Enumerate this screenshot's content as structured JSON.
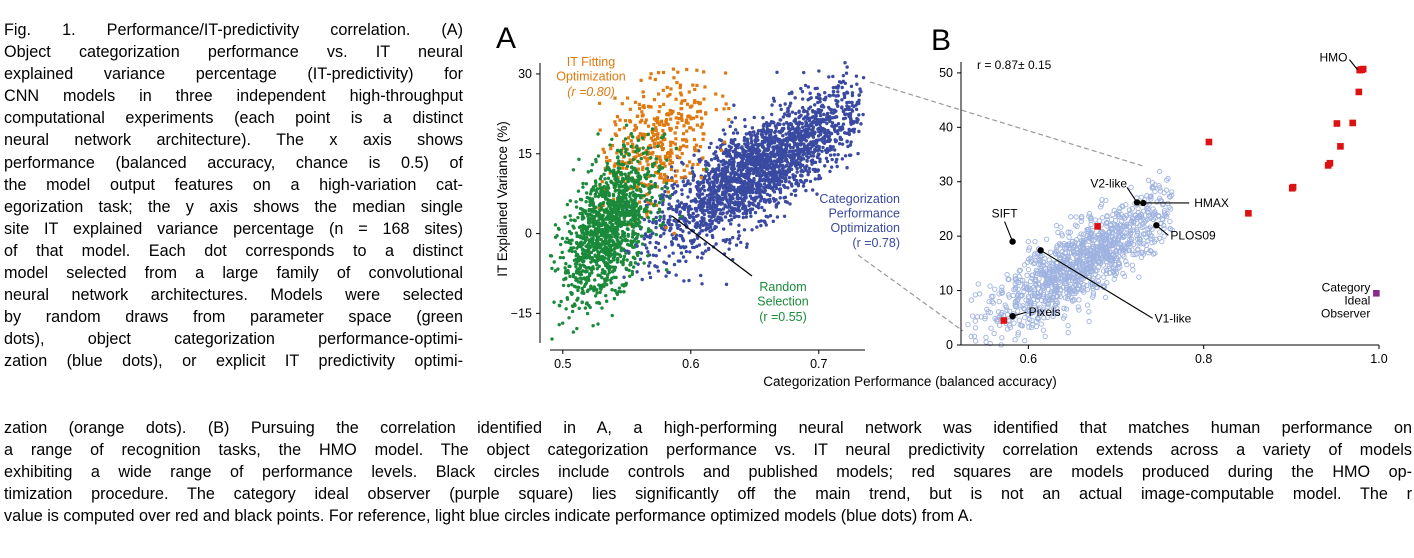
{
  "caption": {
    "top_lines": [
      "Fig. 1.   Performance/IT-predictivity correlation. (A)",
      "Object categorization performance vs. IT neural",
      "explained variance percentage (IT-predictivity) for",
      "CNN models in three independent high-throughput",
      "computational experiments (each point is a distinct",
      "neural network architecture). The x axis shows",
      "performance (balanced accuracy, chance is 0.5) of",
      "the model output features on a high-variation cat-",
      "egorization task; the y axis shows the median single",
      "site IT explained variance percentage (n = 168 sites)",
      "of that model. Each dot corresponds to a distinct",
      "model selected from a large family of convolutional",
      "neural network architectures. Models were selected",
      "by random draws from parameter space (green",
      "dots), object categorization performance-optimi-",
      "zation (blue dots), or explicit IT predictivity optimi-"
    ],
    "bottom_lines": [
      "zation (orange dots). (B) Pursuing the correlation identified in A, a high-performing neural network was identified that matches human performance on",
      "a range of recognition tasks, the HMO model. The object categorization performance vs. IT neural predictivity correlation extends across a variety of models",
      "exhibiting a wide range of performance levels. Black circles include controls and published models; red squares are models produced during the HMO op-",
      "timization procedure. The category ideal observer (purple square) lies significantly off the main trend, but is not an actual image-computable model. The r",
      "value is computed over red and black points. For reference, light blue circles indicate performance optimized models (blue dots) from A."
    ]
  },
  "colors": {
    "orange": "#e07a10",
    "blue": "#3a4aa0",
    "green": "#1a8a3a",
    "light_blue": "#9fb3e0",
    "red": "#dd1111",
    "purple": "#8a2a8a",
    "gray_dashed": "#9a9a9a"
  },
  "chart_data": [
    {
      "panel": "A",
      "type": "scatter",
      "xlabel": "Categorization Performance (balanced accuracy)",
      "ylabel": "IT Explained Variance (%)",
      "xlim": [
        0.49,
        0.74
      ],
      "ylim": [
        -20,
        33
      ],
      "xticks": [
        "0.5",
        "0.6",
        "0.7"
      ],
      "xtick_values": [
        0.5,
        0.6,
        0.7
      ],
      "yticks": [
        "30",
        "15",
        "0",
        "−15"
      ],
      "ytick_values": [
        30,
        15,
        0,
        -15
      ],
      "series": [
        {
          "name": "IT Fitting Optimization",
          "r_label": "(r =0.80)",
          "color": "orange",
          "clouds": [
            {
              "cx": 0.573,
              "cy": 17,
              "sx": 0.022,
              "sy": 7,
              "rho": 0.45,
              "n": 420,
              "xmin": 0.525,
              "xmax": 0.64,
              "ymin": 0,
              "ymax": 31
            }
          ]
        },
        {
          "name": "Categorization Performance Optimization",
          "r_label": "(r =0.78)",
          "color": "blue",
          "clouds": [
            {
              "cx": 0.652,
              "cy": 12,
              "sx": 0.042,
              "sy": 7.5,
              "rho": 0.8,
              "n": 2300,
              "xmin": 0.545,
              "xmax": 0.735,
              "ymin": -12,
              "ymax": 33
            }
          ]
        },
        {
          "name": "Random Selection",
          "r_label": "(r =0.55)",
          "color": "green",
          "clouds": [
            {
              "cx": 0.535,
              "cy": 1,
              "sx": 0.018,
              "sy": 7,
              "rho": 0.55,
              "n": 1300,
              "xmin": 0.49,
              "xmax": 0.62,
              "ymin": -20,
              "ymax": 22
            }
          ]
        }
      ]
    },
    {
      "panel": "B",
      "type": "scatter",
      "xlim": [
        0.53,
        1.0
      ],
      "ylim": [
        0,
        52
      ],
      "xticks": [
        "0.6",
        "0.8",
        "1.0"
      ],
      "xtick_values": [
        0.6,
        0.8,
        1.0
      ],
      "yticks": [
        "50",
        "40",
        "30",
        "20",
        "10",
        "0"
      ],
      "ytick_values": [
        50,
        40,
        30,
        20,
        10,
        0
      ],
      "annotation": "r = 0.87± 0.15",
      "reference_cloud": {
        "color": "light_blue",
        "clouds": [
          {
            "cx": 0.665,
            "cy": 15.5,
            "sx": 0.058,
            "sy": 6.5,
            "rho": 0.85,
            "n": 1200,
            "xmin": 0.53,
            "xmax": 0.765,
            "ymin": 0,
            "ymax": 33
          }
        ]
      },
      "red_squares": [
        [
          0.572,
          4.5
        ],
        [
          0.679,
          21.8
        ],
        [
          0.806,
          37.3
        ],
        [
          0.851,
          24.2
        ],
        [
          0.901,
          28.8
        ],
        [
          0.902,
          29.0
        ],
        [
          0.942,
          33.0
        ],
        [
          0.944,
          33.4
        ],
        [
          0.952,
          40.7
        ],
        [
          0.956,
          36.5
        ],
        [
          0.97,
          40.8
        ],
        [
          0.977,
          46.5
        ],
        [
          0.978,
          50.5
        ],
        [
          0.982,
          50.7
        ]
      ],
      "black_points": [
        {
          "label": "HMAX",
          "x": 0.731,
          "y": 26.1
        },
        {
          "label": "V2-like",
          "x": 0.724,
          "y": 26.2
        },
        {
          "label": "SIFT",
          "x": 0.582,
          "y": 19.0
        },
        {
          "label": "PLOS09",
          "x": 0.746,
          "y": 22.0
        },
        {
          "label": "V1-like",
          "x": 0.614,
          "y": 17.4
        },
        {
          "label": "Pixels",
          "x": 0.582,
          "y": 5.3
        }
      ],
      "hmo": {
        "label": "HMO",
        "x": 0.98,
        "y": 50.6
      },
      "ideal_observer": {
        "label_lines": [
          "Category",
          "Ideal",
          "Observer"
        ],
        "x": 0.997,
        "y": 9.5
      }
    }
  ],
  "labels": {
    "panel_a": "A",
    "panel_b": "B",
    "orange_label_lines": [
      "IT Fitting",
      "Optimization"
    ],
    "blue_label_lines": [
      "Categorization",
      "Performance",
      "Optimization"
    ],
    "green_label_lines": [
      "Random",
      "Selection"
    ]
  }
}
